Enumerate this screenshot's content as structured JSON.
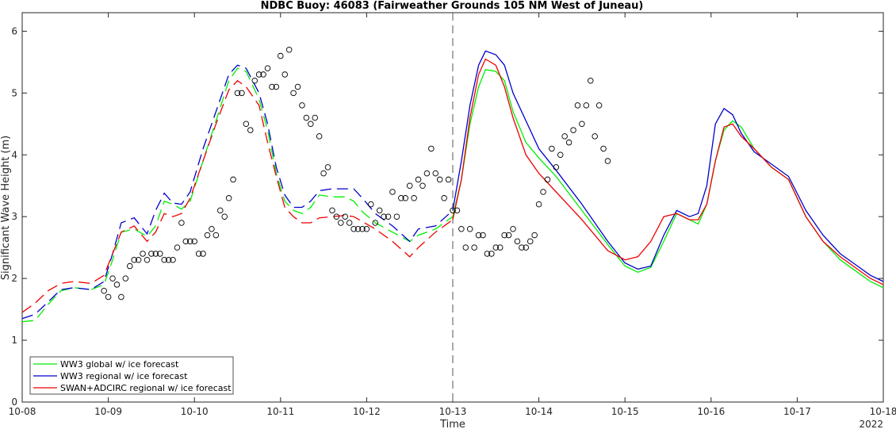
{
  "chart_data": {
    "type": "line",
    "title": "NDBC Buoy: 46083 (Fairweather Grounds 105 NM West of Juneau)",
    "xlabel": "Time",
    "ylabel": "Significant Wave Height (m)",
    "xlim": [
      0,
      10
    ],
    "ylim": [
      0,
      6.3
    ],
    "x_ticks": [
      0,
      1,
      2,
      3,
      4,
      5,
      6,
      7,
      8,
      9,
      10
    ],
    "x_tick_labels": [
      "10-08",
      "10-09",
      "10-10",
      "10-11",
      "10-12",
      "10-13",
      "10-14",
      "10-15",
      "10-16",
      "10-17",
      "10-18"
    ],
    "x_secondary_label": "2022",
    "y_ticks": [
      0,
      1,
      2,
      3,
      4,
      5,
      6
    ],
    "forecast_start_x": 5,
    "colors": {
      "green": "#00ee00",
      "blue": "#0000cc",
      "red": "#ee0000",
      "obs": "#000000",
      "axis": "#262626"
    },
    "series": [
      {
        "name": "WW3 global w/ ice forecast",
        "color": "#00ee00",
        "hindcast": [
          [
            0,
            1.3
          ],
          [
            0.15,
            1.32
          ],
          [
            0.3,
            1.58
          ],
          [
            0.45,
            1.8
          ],
          [
            0.6,
            1.85
          ],
          [
            0.8,
            1.82
          ],
          [
            0.95,
            1.9
          ],
          [
            1.05,
            2.3
          ],
          [
            1.15,
            2.75
          ],
          [
            1.3,
            2.8
          ],
          [
            1.45,
            2.68
          ],
          [
            1.55,
            2.85
          ],
          [
            1.65,
            3.25
          ],
          [
            1.75,
            3.2
          ],
          [
            1.85,
            3.12
          ],
          [
            1.95,
            3.25
          ],
          [
            2.1,
            3.9
          ],
          [
            2.25,
            4.55
          ],
          [
            2.4,
            5.2
          ],
          [
            2.5,
            5.4
          ],
          [
            2.6,
            5.35
          ],
          [
            2.75,
            4.9
          ],
          [
            2.85,
            4.4
          ],
          [
            2.95,
            3.7
          ],
          [
            3.05,
            3.25
          ],
          [
            3.15,
            3.1
          ],
          [
            3.25,
            3.05
          ],
          [
            3.35,
            3.15
          ],
          [
            3.45,
            3.35
          ],
          [
            3.6,
            3.32
          ],
          [
            3.75,
            3.32
          ],
          [
            3.85,
            3.25
          ],
          [
            3.95,
            3.08
          ],
          [
            4.1,
            2.9
          ],
          [
            4.3,
            2.75
          ],
          [
            4.5,
            2.6
          ],
          [
            4.6,
            2.7
          ],
          [
            4.8,
            2.8
          ],
          [
            5.0,
            3.0
          ]
        ],
        "forecast": [
          [
            5.0,
            3.0
          ],
          [
            5.1,
            3.6
          ],
          [
            5.2,
            4.5
          ],
          [
            5.3,
            5.1
          ],
          [
            5.38,
            5.38
          ],
          [
            5.5,
            5.35
          ],
          [
            5.6,
            5.2
          ],
          [
            5.7,
            4.7
          ],
          [
            5.85,
            4.2
          ],
          [
            6.0,
            3.95
          ],
          [
            6.2,
            3.65
          ],
          [
            6.5,
            3.1
          ],
          [
            6.8,
            2.55
          ],
          [
            7.0,
            2.2
          ],
          [
            7.15,
            2.1
          ],
          [
            7.3,
            2.18
          ],
          [
            7.45,
            2.6
          ],
          [
            7.6,
            3.05
          ],
          [
            7.75,
            2.95
          ],
          [
            7.85,
            2.88
          ],
          [
            7.95,
            3.2
          ],
          [
            8.05,
            3.9
          ],
          [
            8.15,
            4.4
          ],
          [
            8.25,
            4.55
          ],
          [
            8.35,
            4.45
          ],
          [
            8.5,
            4.1
          ],
          [
            8.7,
            3.8
          ],
          [
            8.9,
            3.6
          ],
          [
            9.1,
            3.0
          ],
          [
            9.3,
            2.6
          ],
          [
            9.5,
            2.3
          ],
          [
            9.7,
            2.1
          ],
          [
            9.85,
            1.95
          ],
          [
            10.0,
            1.85
          ]
        ]
      },
      {
        "name": "WW3 regional w/ ice forecast",
        "color": "#0000cc",
        "hindcast": [
          [
            0,
            1.35
          ],
          [
            0.15,
            1.42
          ],
          [
            0.3,
            1.62
          ],
          [
            0.45,
            1.82
          ],
          [
            0.6,
            1.85
          ],
          [
            0.8,
            1.82
          ],
          [
            0.95,
            1.95
          ],
          [
            1.05,
            2.4
          ],
          [
            1.15,
            2.9
          ],
          [
            1.3,
            2.98
          ],
          [
            1.45,
            2.72
          ],
          [
            1.55,
            3.1
          ],
          [
            1.65,
            3.38
          ],
          [
            1.75,
            3.22
          ],
          [
            1.85,
            3.2
          ],
          [
            1.95,
            3.4
          ],
          [
            2.1,
            4.1
          ],
          [
            2.25,
            4.7
          ],
          [
            2.4,
            5.3
          ],
          [
            2.5,
            5.45
          ],
          [
            2.6,
            5.4
          ],
          [
            2.75,
            5.0
          ],
          [
            2.85,
            4.5
          ],
          [
            2.95,
            3.8
          ],
          [
            3.05,
            3.35
          ],
          [
            3.15,
            3.15
          ],
          [
            3.25,
            3.15
          ],
          [
            3.35,
            3.25
          ],
          [
            3.45,
            3.42
          ],
          [
            3.6,
            3.45
          ],
          [
            3.75,
            3.45
          ],
          [
            3.85,
            3.45
          ],
          [
            3.95,
            3.3
          ],
          [
            4.1,
            3.05
          ],
          [
            4.3,
            2.85
          ],
          [
            4.5,
            2.6
          ],
          [
            4.6,
            2.8
          ],
          [
            4.8,
            2.85
          ],
          [
            5.0,
            3.1
          ]
        ],
        "forecast": [
          [
            5.0,
            3.1
          ],
          [
            5.1,
            3.9
          ],
          [
            5.2,
            4.8
          ],
          [
            5.3,
            5.45
          ],
          [
            5.38,
            5.68
          ],
          [
            5.5,
            5.62
          ],
          [
            5.6,
            5.45
          ],
          [
            5.7,
            5.0
          ],
          [
            5.85,
            4.55
          ],
          [
            6.0,
            4.1
          ],
          [
            6.2,
            3.75
          ],
          [
            6.5,
            3.2
          ],
          [
            6.8,
            2.6
          ],
          [
            7.0,
            2.25
          ],
          [
            7.15,
            2.15
          ],
          [
            7.3,
            2.2
          ],
          [
            7.45,
            2.7
          ],
          [
            7.6,
            3.1
          ],
          [
            7.75,
            3.0
          ],
          [
            7.85,
            3.05
          ],
          [
            7.95,
            3.5
          ],
          [
            8.05,
            4.5
          ],
          [
            8.15,
            4.75
          ],
          [
            8.25,
            4.65
          ],
          [
            8.35,
            4.35
          ],
          [
            8.5,
            4.05
          ],
          [
            8.7,
            3.85
          ],
          [
            8.9,
            3.65
          ],
          [
            9.1,
            3.1
          ],
          [
            9.3,
            2.7
          ],
          [
            9.5,
            2.4
          ],
          [
            9.7,
            2.2
          ],
          [
            9.85,
            2.05
          ],
          [
            10.0,
            1.95
          ]
        ]
      },
      {
        "name": "SWAN+ADCIRC regional w/ ice forecast",
        "color": "#ee0000",
        "hindcast": [
          [
            0,
            1.45
          ],
          [
            0.15,
            1.6
          ],
          [
            0.3,
            1.8
          ],
          [
            0.45,
            1.92
          ],
          [
            0.6,
            1.95
          ],
          [
            0.8,
            1.92
          ],
          [
            0.95,
            2.05
          ],
          [
            1.05,
            2.4
          ],
          [
            1.15,
            2.75
          ],
          [
            1.3,
            2.85
          ],
          [
            1.45,
            2.6
          ],
          [
            1.55,
            2.75
          ],
          [
            1.65,
            3.05
          ],
          [
            1.75,
            3.0
          ],
          [
            1.85,
            3.05
          ],
          [
            1.95,
            3.3
          ],
          [
            2.1,
            3.9
          ],
          [
            2.25,
            4.5
          ],
          [
            2.4,
            5.05
          ],
          [
            2.5,
            5.2
          ],
          [
            2.6,
            5.1
          ],
          [
            2.75,
            4.8
          ],
          [
            2.85,
            4.2
          ],
          [
            2.95,
            3.65
          ],
          [
            3.05,
            3.15
          ],
          [
            3.15,
            3.0
          ],
          [
            3.25,
            2.9
          ],
          [
            3.35,
            2.9
          ],
          [
            3.45,
            2.98
          ],
          [
            3.6,
            3.0
          ],
          [
            3.75,
            3.02
          ],
          [
            3.85,
            3.0
          ],
          [
            3.95,
            2.92
          ],
          [
            4.1,
            2.8
          ],
          [
            4.3,
            2.6
          ],
          [
            4.5,
            2.35
          ],
          [
            4.6,
            2.5
          ],
          [
            4.8,
            2.75
          ],
          [
            5.0,
            2.95
          ]
        ],
        "forecast": [
          [
            5.0,
            2.95
          ],
          [
            5.1,
            3.6
          ],
          [
            5.2,
            4.6
          ],
          [
            5.3,
            5.3
          ],
          [
            5.38,
            5.55
          ],
          [
            5.5,
            5.45
          ],
          [
            5.6,
            5.1
          ],
          [
            5.7,
            4.6
          ],
          [
            5.85,
            4.0
          ],
          [
            6.0,
            3.7
          ],
          [
            6.2,
            3.4
          ],
          [
            6.5,
            2.95
          ],
          [
            6.8,
            2.45
          ],
          [
            7.0,
            2.3
          ],
          [
            7.15,
            2.35
          ],
          [
            7.3,
            2.6
          ],
          [
            7.45,
            3.0
          ],
          [
            7.6,
            3.05
          ],
          [
            7.75,
            2.95
          ],
          [
            7.85,
            2.95
          ],
          [
            7.95,
            3.2
          ],
          [
            8.05,
            3.9
          ],
          [
            8.15,
            4.45
          ],
          [
            8.25,
            4.5
          ],
          [
            8.35,
            4.3
          ],
          [
            8.5,
            4.1
          ],
          [
            8.7,
            3.8
          ],
          [
            8.9,
            3.6
          ],
          [
            9.1,
            3.0
          ],
          [
            9.3,
            2.6
          ],
          [
            9.5,
            2.35
          ],
          [
            9.7,
            2.15
          ],
          [
            9.85,
            2.0
          ],
          [
            10.0,
            1.9
          ]
        ]
      }
    ],
    "observations": [
      [
        0.95,
        1.8
      ],
      [
        1.0,
        1.7
      ],
      [
        1.05,
        2.0
      ],
      [
        1.1,
        1.9
      ],
      [
        1.15,
        1.7
      ],
      [
        1.2,
        2.0
      ],
      [
        1.25,
        2.2
      ],
      [
        1.3,
        2.3
      ],
      [
        1.35,
        2.3
      ],
      [
        1.4,
        2.4
      ],
      [
        1.45,
        2.3
      ],
      [
        1.5,
        2.4
      ],
      [
        1.55,
        2.4
      ],
      [
        1.6,
        2.4
      ],
      [
        1.65,
        2.3
      ],
      [
        1.7,
        2.3
      ],
      [
        1.75,
        2.3
      ],
      [
        1.8,
        2.5
      ],
      [
        1.85,
        2.9
      ],
      [
        1.9,
        2.6
      ],
      [
        1.95,
        2.6
      ],
      [
        2.0,
        2.6
      ],
      [
        2.05,
        2.4
      ],
      [
        2.1,
        2.4
      ],
      [
        2.15,
        2.7
      ],
      [
        2.2,
        2.8
      ],
      [
        2.25,
        2.7
      ],
      [
        2.3,
        3.1
      ],
      [
        2.35,
        3.0
      ],
      [
        2.4,
        3.3
      ],
      [
        2.45,
        3.6
      ],
      [
        2.5,
        5.0
      ],
      [
        2.55,
        5.0
      ],
      [
        2.6,
        4.5
      ],
      [
        2.65,
        4.4
      ],
      [
        2.7,
        5.2
      ],
      [
        2.75,
        5.3
      ],
      [
        2.8,
        5.3
      ],
      [
        2.85,
        5.4
      ],
      [
        2.9,
        5.1
      ],
      [
        2.95,
        5.1
      ],
      [
        3.0,
        5.6
      ],
      [
        3.05,
        5.3
      ],
      [
        3.1,
        5.7
      ],
      [
        3.15,
        5.0
      ],
      [
        3.2,
        5.1
      ],
      [
        3.25,
        4.8
      ],
      [
        3.3,
        4.6
      ],
      [
        3.35,
        4.5
      ],
      [
        3.4,
        4.6
      ],
      [
        3.45,
        4.3
      ],
      [
        3.5,
        3.7
      ],
      [
        3.55,
        3.8
      ],
      [
        3.6,
        3.1
      ],
      [
        3.65,
        3.0
      ],
      [
        3.7,
        2.9
      ],
      [
        3.75,
        3.0
      ],
      [
        3.8,
        2.9
      ],
      [
        3.85,
        2.8
      ],
      [
        3.9,
        2.8
      ],
      [
        3.95,
        2.8
      ],
      [
        4.0,
        2.8
      ],
      [
        4.05,
        3.2
      ],
      [
        4.1,
        2.9
      ],
      [
        4.15,
        3.1
      ],
      [
        4.2,
        3.0
      ],
      [
        4.25,
        3.0
      ],
      [
        4.3,
        3.4
      ],
      [
        4.35,
        3.0
      ],
      [
        4.4,
        3.3
      ],
      [
        4.45,
        3.3
      ],
      [
        4.5,
        3.5
      ],
      [
        4.55,
        3.3
      ],
      [
        4.6,
        3.6
      ],
      [
        4.65,
        3.5
      ],
      [
        4.7,
        3.7
      ],
      [
        4.75,
        4.1
      ],
      [
        4.8,
        3.7
      ],
      [
        4.85,
        3.6
      ],
      [
        4.9,
        3.3
      ],
      [
        4.95,
        3.6
      ],
      [
        5.0,
        3.1
      ],
      [
        5.05,
        3.1
      ],
      [
        5.1,
        2.8
      ],
      [
        5.15,
        2.5
      ],
      [
        5.2,
        2.8
      ],
      [
        5.25,
        2.5
      ],
      [
        5.3,
        2.7
      ],
      [
        5.35,
        2.7
      ],
      [
        5.4,
        2.4
      ],
      [
        5.45,
        2.4
      ],
      [
        5.5,
        2.5
      ],
      [
        5.55,
        2.5
      ],
      [
        5.6,
        2.7
      ],
      [
        5.65,
        2.7
      ],
      [
        5.7,
        2.8
      ],
      [
        5.75,
        2.6
      ],
      [
        5.8,
        2.5
      ],
      [
        5.85,
        2.5
      ],
      [
        5.9,
        2.6
      ],
      [
        5.95,
        2.7
      ],
      [
        6.0,
        3.2
      ],
      [
        6.05,
        3.4
      ],
      [
        6.1,
        3.6
      ],
      [
        6.15,
        4.1
      ],
      [
        6.2,
        3.8
      ],
      [
        6.25,
        4.0
      ],
      [
        6.3,
        4.3
      ],
      [
        6.35,
        4.2
      ],
      [
        6.4,
        4.4
      ],
      [
        6.45,
        4.8
      ],
      [
        6.5,
        4.5
      ],
      [
        6.55,
        4.8
      ],
      [
        6.6,
        5.2
      ],
      [
        6.65,
        4.3
      ],
      [
        6.7,
        4.8
      ],
      [
        6.75,
        4.1
      ],
      [
        6.8,
        3.9
      ]
    ],
    "legend": {
      "position": "bottom-left",
      "entries": [
        "WW3 global w/ ice forecast",
        "WW3 regional w/ ice forecast",
        "SWAN+ADCIRC regional w/ ice forecast"
      ]
    }
  }
}
